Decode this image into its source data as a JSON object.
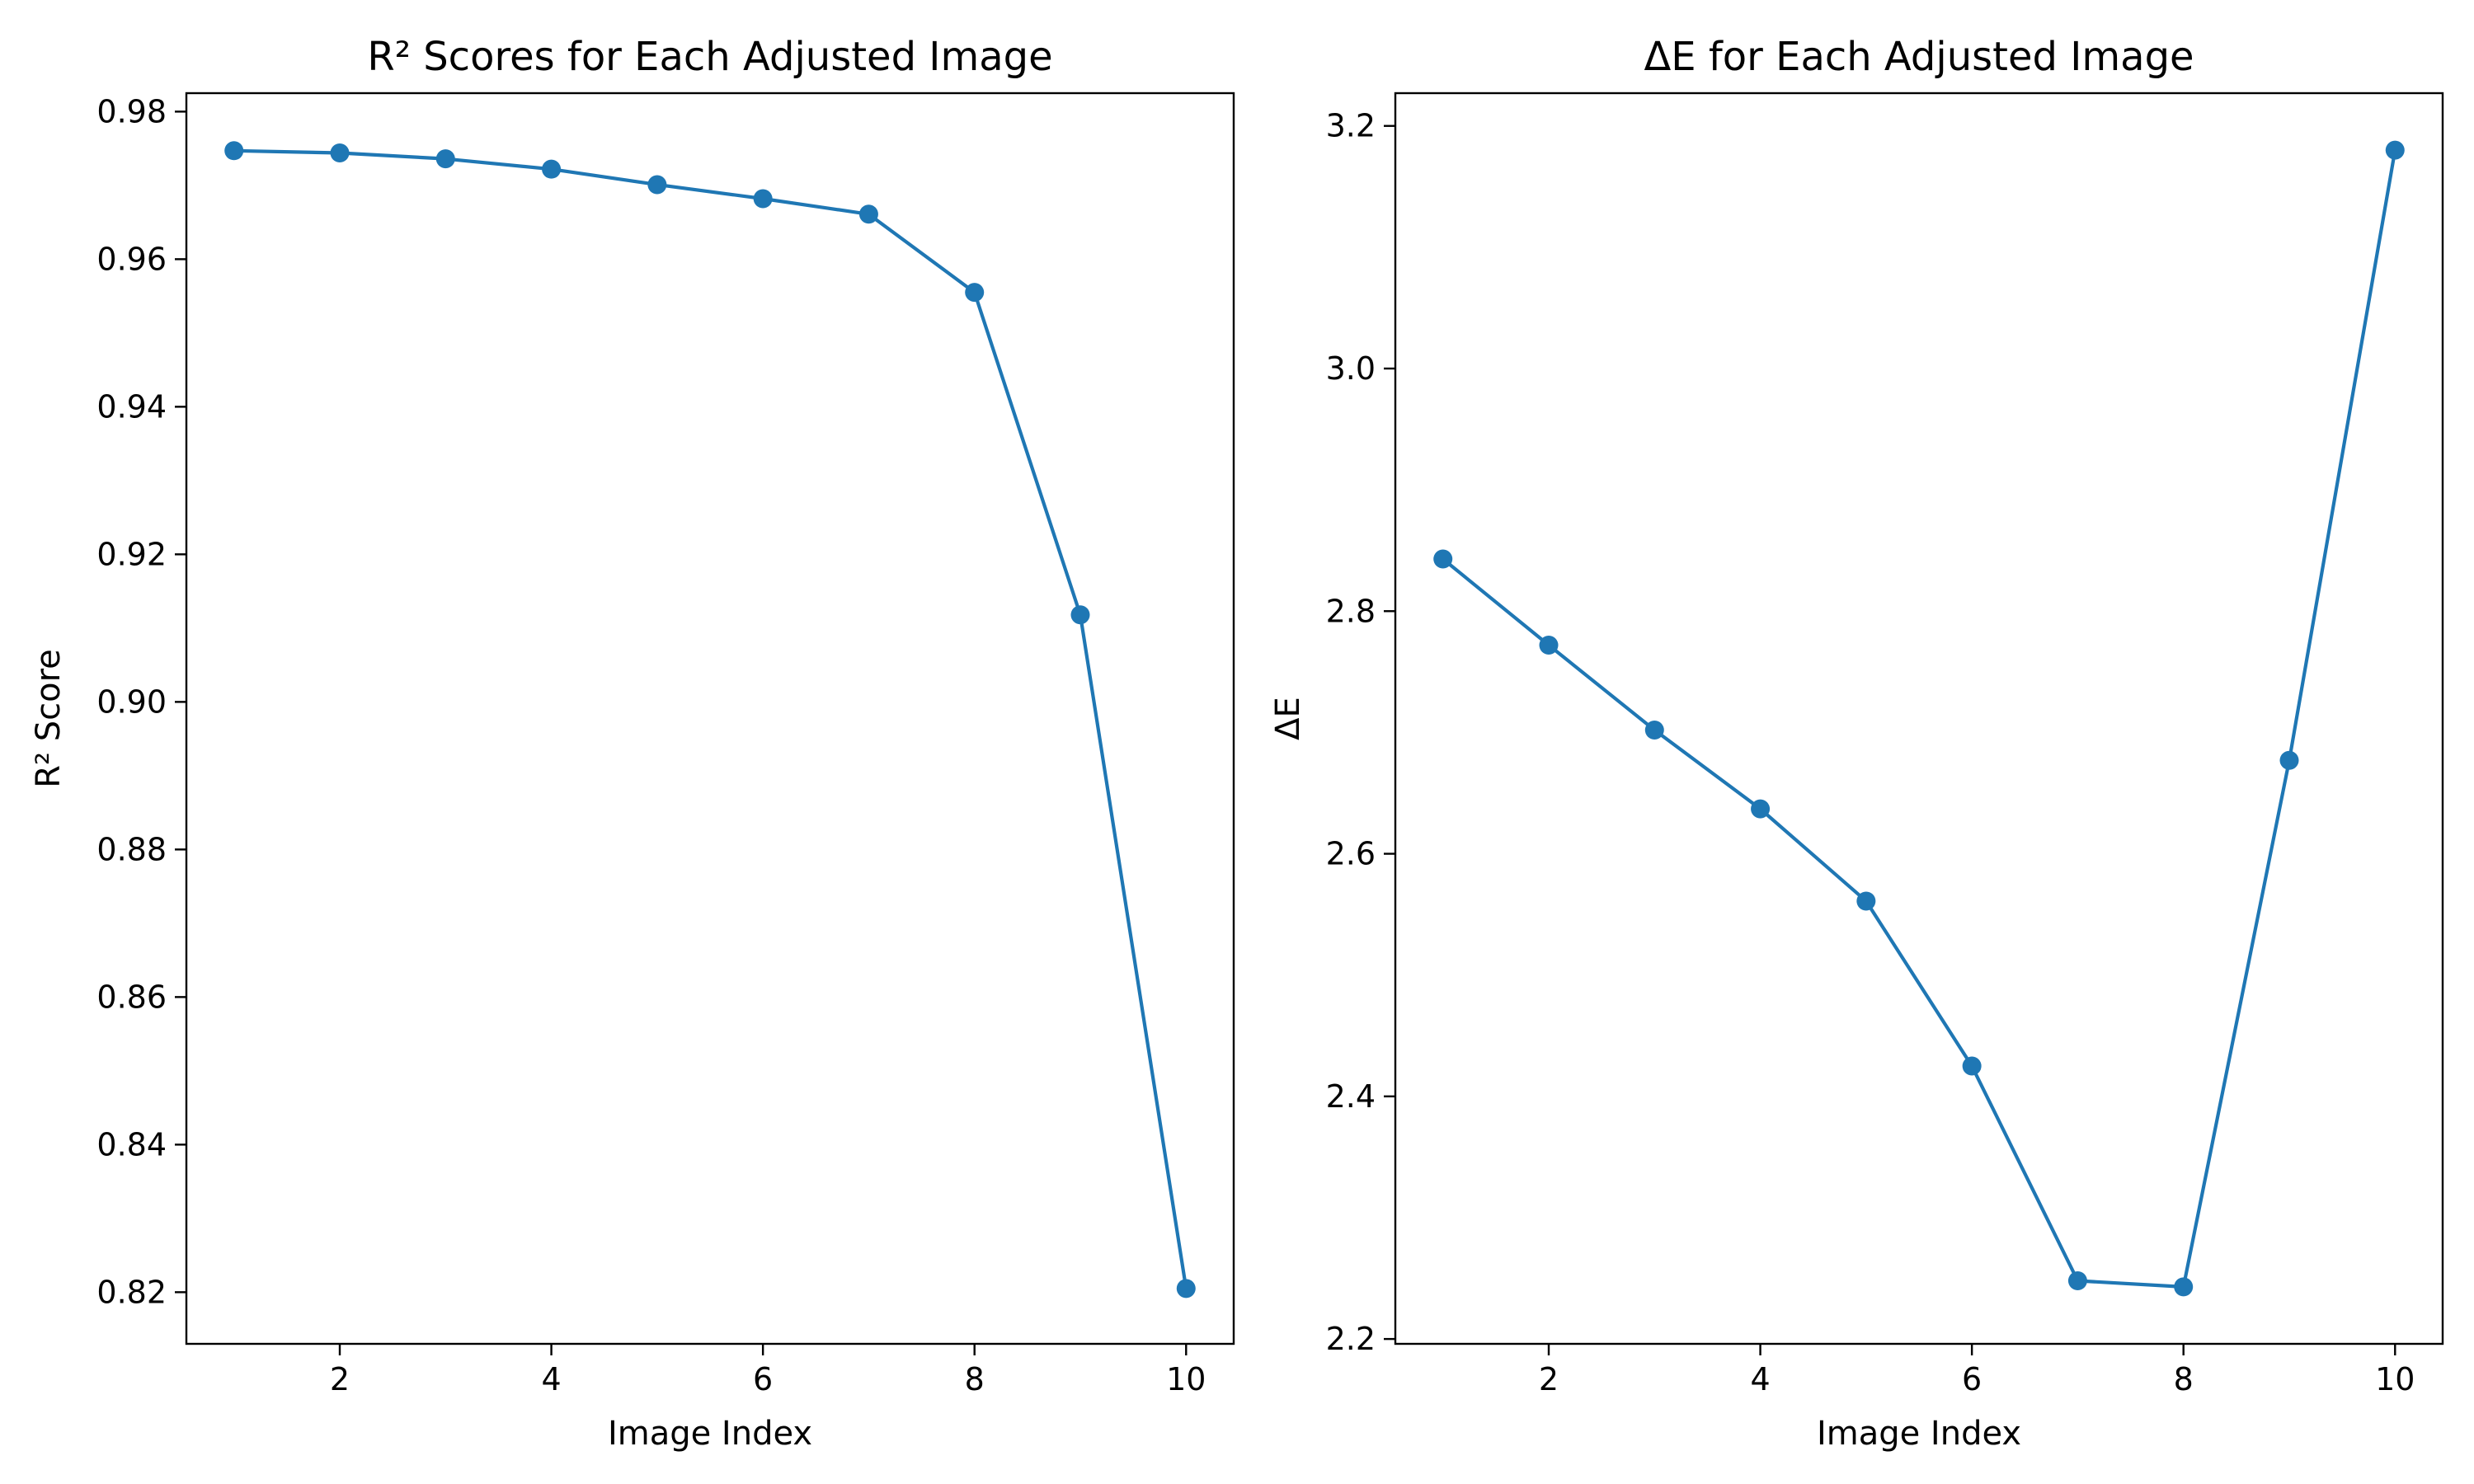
{
  "chart_data": [
    {
      "type": "line",
      "title": "R² Scores for Each Adjusted Image",
      "xlabel": "Image Index",
      "ylabel": "R² Score",
      "x": [
        1,
        2,
        3,
        4,
        5,
        6,
        7,
        8,
        9,
        10
      ],
      "series": [
        {
          "values": [
            0.9747,
            0.9744,
            0.9736,
            0.9722,
            0.9701,
            0.9682,
            0.9661,
            0.9555,
            0.9118,
            0.8205
          ]
        }
      ],
      "xlim": [
        0.55,
        10.45
      ],
      "ylim": [
        0.813,
        0.9825
      ],
      "xticks": [
        2,
        4,
        6,
        8,
        10
      ],
      "xtick_labels": [
        "2",
        "4",
        "6",
        "8",
        "10"
      ],
      "yticks": [
        0.82,
        0.84,
        0.86,
        0.88,
        0.9,
        0.92,
        0.94,
        0.96,
        0.98
      ],
      "ytick_labels": [
        "0.82",
        "0.84",
        "0.86",
        "0.88",
        "0.90",
        "0.92",
        "0.94",
        "0.96",
        "0.98"
      ],
      "grid": false,
      "marker": "circle",
      "color": "#1f77b4"
    },
    {
      "type": "line",
      "title": "ΔE for Each Adjusted Image",
      "xlabel": "Image Index",
      "ylabel": "ΔE",
      "x": [
        1,
        2,
        3,
        4,
        5,
        6,
        7,
        8,
        9,
        10
      ],
      "series": [
        {
          "values": [
            2.843,
            2.772,
            2.702,
            2.637,
            2.561,
            2.425,
            2.248,
            2.243,
            2.677,
            3.18
          ]
        }
      ],
      "xlim": [
        0.55,
        10.45
      ],
      "ylim": [
        2.196,
        3.227
      ],
      "xticks": [
        2,
        4,
        6,
        8,
        10
      ],
      "xtick_labels": [
        "2",
        "4",
        "6",
        "8",
        "10"
      ],
      "yticks": [
        2.2,
        2.4,
        2.6,
        2.8,
        3.0,
        3.2
      ],
      "ytick_labels": [
        "2.2",
        "2.4",
        "2.6",
        "2.8",
        "3.0",
        "3.2"
      ],
      "grid": false,
      "marker": "circle",
      "color": "#1f77b4"
    }
  ]
}
